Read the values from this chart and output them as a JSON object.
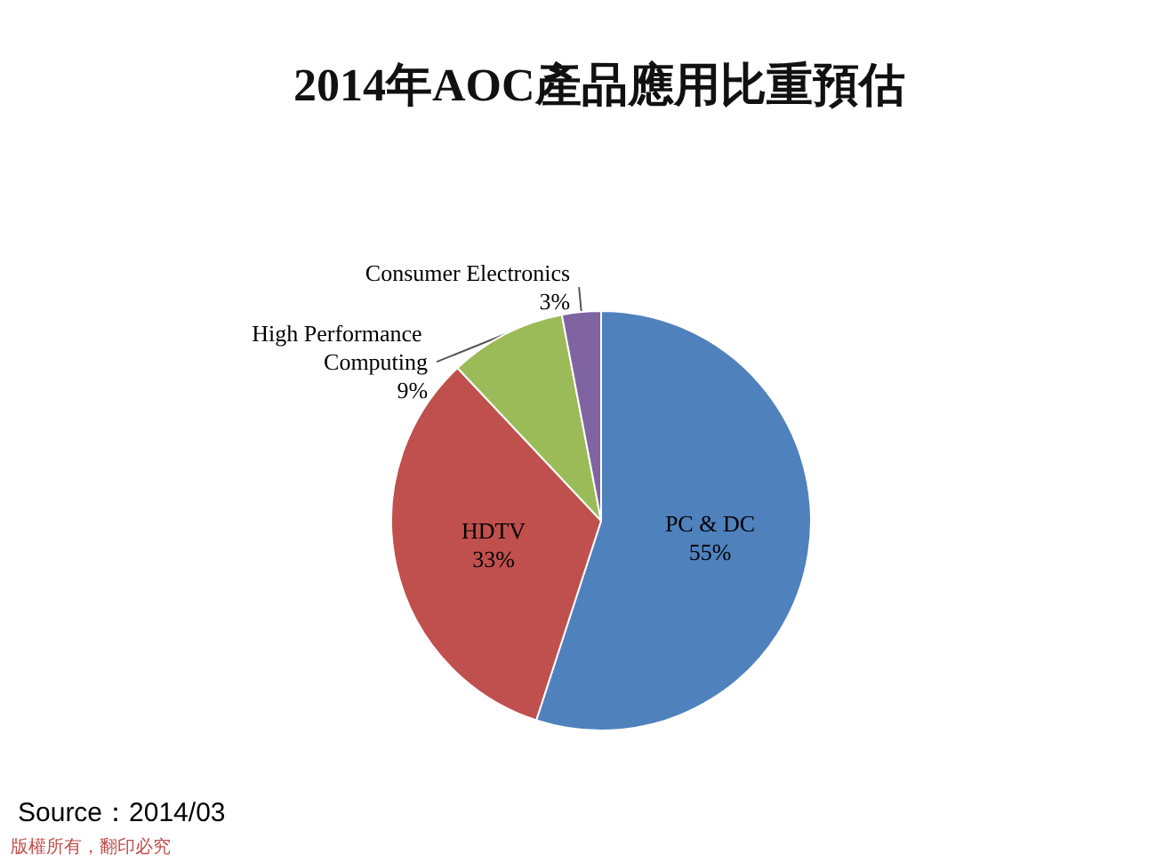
{
  "chart_data": {
    "type": "pie",
    "title": "2014年AOC產品應用比重預估",
    "categories": [
      "PC & DC",
      "HDTV",
      "High Performance Computing",
      "Consumer Electronics"
    ],
    "values": [
      55,
      33,
      9,
      3
    ],
    "colors": [
      "#4f81bd",
      "#c0504d",
      "#9bbb59",
      "#8064a2"
    ],
    "value_labels": [
      "55%",
      "33%",
      "9%",
      "3%"
    ],
    "legend": false,
    "annotations": [
      "Source：2014/03",
      "版權所有，翻印必究"
    ]
  }
}
